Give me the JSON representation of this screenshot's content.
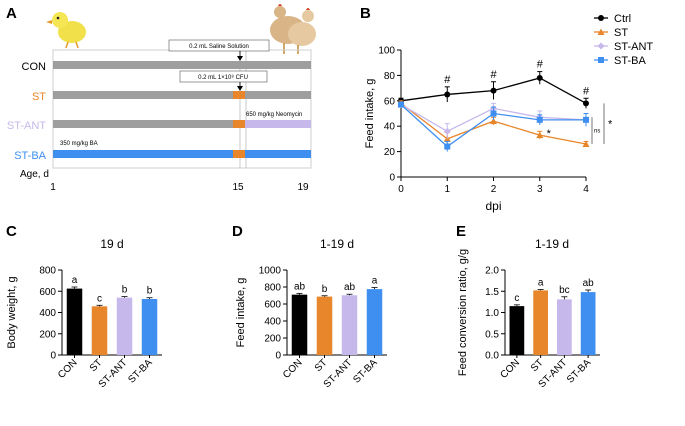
{
  "colors": {
    "ctrl": "#000000",
    "st": "#e8862b",
    "st_ant": "#c7b8ec",
    "st_ba": "#3f8ff0",
    "timeline_gray": "#9e9e9e",
    "chick": "#f2e04a",
    "hen": "#d8b487"
  },
  "panel_a": {
    "letter": "A",
    "rows": [
      {
        "label": "CON",
        "color_key": "ctrl"
      },
      {
        "label": "ST",
        "color_key": "st"
      },
      {
        "label": "ST-ANT",
        "color_key": "st_ant"
      },
      {
        "label": "ST-BA",
        "color_key": "st_ba"
      }
    ],
    "notes": {
      "saline": "0.2 mL Saline Solution",
      "cfu": "0.2 mL 1×10⁸ CFU",
      "neomycin": "650 mg/kg Neomycin",
      "ba": "350 mg/kg BA"
    },
    "age_label": "Age, d",
    "ages": [
      "1",
      "15",
      "19"
    ]
  },
  "chart_data": [
    {
      "panel": "B",
      "type": "line",
      "title": "",
      "xlabel": "dpi",
      "ylabel": "Feed intake, g",
      "x": [
        0,
        1,
        2,
        3,
        4
      ],
      "xlim": [
        0,
        4
      ],
      "ylim": [
        0,
        100
      ],
      "yticks": [
        0,
        20,
        40,
        60,
        80,
        100
      ],
      "series": [
        {
          "name": "Ctrl",
          "color_key": "ctrl",
          "marker": "circle",
          "values": [
            60,
            65,
            68,
            78,
            58
          ],
          "errors": [
            2,
            6,
            7,
            5,
            4
          ]
        },
        {
          "name": "ST",
          "color_key": "st",
          "marker": "triangle",
          "values": [
            58,
            30,
            44,
            33,
            26
          ],
          "errors": [
            2,
            5,
            3,
            3,
            2
          ]
        },
        {
          "name": "ST-ANT",
          "color_key": "st_ant",
          "marker": "diamond",
          "values": [
            57,
            36,
            54,
            47,
            45
          ],
          "errors": [
            2,
            6,
            4,
            5,
            5
          ]
        },
        {
          "name": "ST-BA",
          "color_key": "st_ba",
          "marker": "square",
          "values": [
            57,
            24,
            50,
            45,
            45
          ],
          "errors": [
            2,
            4,
            5,
            4,
            5
          ]
        }
      ],
      "annotations": {
        "hash": "#",
        "hash_days": [
          1,
          2,
          3,
          4
        ],
        "star": "*",
        "ns": "ns",
        "bracket_star": "*"
      }
    },
    {
      "panel": "C",
      "type": "bar",
      "title": "19 d",
      "xlabel": "",
      "ylabel": "Body weight, g",
      "categories": [
        "CON",
        "ST",
        "ST-ANT",
        "ST-BA"
      ],
      "values": [
        625,
        458,
        540,
        527
      ],
      "errors": [
        15,
        10,
        10,
        12
      ],
      "letters": [
        "a",
        "c",
        "b",
        "b"
      ],
      "ylim": [
        0,
        800
      ],
      "yticks": [
        0,
        200,
        400,
        600,
        800
      ]
    },
    {
      "panel": "D",
      "type": "bar",
      "title": "1-19 d",
      "xlabel": "",
      "ylabel": "Feed intake, g",
      "categories": [
        "CON",
        "ST",
        "ST-ANT",
        "ST-BA"
      ],
      "values": [
        710,
        687,
        703,
        775
      ],
      "errors": [
        15,
        10,
        12,
        18
      ],
      "letters": [
        "ab",
        "b",
        "ab",
        "a"
      ],
      "ylim": [
        0,
        1000
      ],
      "yticks": [
        0,
        200,
        400,
        600,
        800,
        1000
      ]
    },
    {
      "panel": "E",
      "type": "bar",
      "title": "1-19 d",
      "xlabel": "",
      "ylabel": "Feed conversion ratio, g/g",
      "categories": [
        "CON",
        "ST",
        "ST-ANT",
        "ST-BA"
      ],
      "values": [
        1.15,
        1.52,
        1.31,
        1.48
      ],
      "errors": [
        0.03,
        0.02,
        0.06,
        0.05
      ],
      "letters": [
        "c",
        "a",
        "bc",
        "ab"
      ],
      "ylim": [
        0,
        2.0
      ],
      "yticks": [
        0.0,
        0.5,
        1.0,
        1.5,
        2.0
      ],
      "ytick_labels": [
        "0.0",
        "0.5",
        "1.0",
        "1.5",
        "2.0"
      ]
    }
  ]
}
